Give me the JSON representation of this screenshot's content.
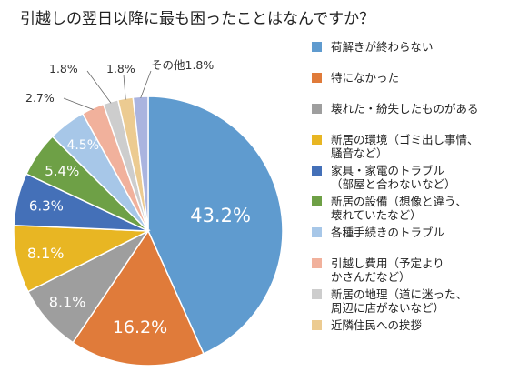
{
  "chart_data": {
    "type": "pie",
    "title": "引越しの翌日以降に最も困ったことはなんですか？",
    "series": [
      {
        "label": "荷解きが終わらない",
        "value": 43.2,
        "display": "43.2%",
        "color": "#5f9bcf"
      },
      {
        "label": "特になかった",
        "value": 16.2,
        "display": "16.2%",
        "color": "#e07b3a"
      },
      {
        "label": "壊れた・紛失したものがある",
        "value": 8.1,
        "display": "8.1%",
        "color": "#9e9e9e"
      },
      {
        "label": "新居の環境（ゴミ出し事情、\n騒音など）",
        "value": 8.1,
        "display": "8.1%",
        "color": "#e8b623"
      },
      {
        "label": "家具・家電のトラブル\n（部屋と合わないなど）",
        "value": 6.3,
        "display": "6.3%",
        "color": "#4470b8"
      },
      {
        "label": "新居の設備（想像と違う、\n壊れていたなど）",
        "value": 5.4,
        "display": "5.4%",
        "color": "#6ea046"
      },
      {
        "label": "各種手続きのトラブル",
        "value": 4.5,
        "display": "4.5%",
        "color": "#a7c7e8"
      },
      {
        "label": "引越し費用（予定より\nかさんだなど）",
        "value": 2.7,
        "display": "2.7%",
        "color": "#f1b19c"
      },
      {
        "label": "新居の地理（道に迷った、\n周辺に店がないなど）",
        "value": 1.8,
        "display": "1.8%",
        "color": "#cdcdcd"
      },
      {
        "label": "近隣住民への挨拶",
        "value": 1.8,
        "display": "1.8%",
        "color": "#eccb91"
      },
      {
        "label": "その他",
        "value": 1.8,
        "display": "その他1.8%",
        "color": "#aab4df"
      }
    ]
  }
}
